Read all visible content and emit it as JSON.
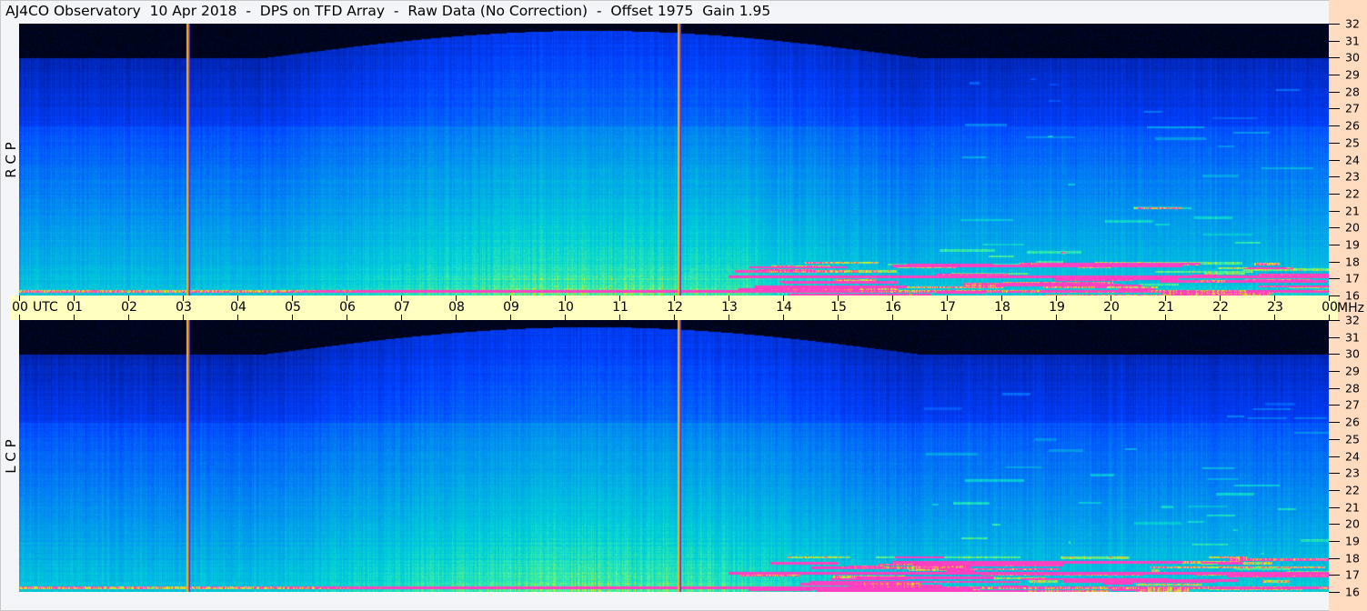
{
  "title": "AJ4CO Observatory  10 Apr 2018  -  DPS on TFD Array  -  Raw Data (No Correction)  -  Offset 1975  Gain 1.95",
  "chart_data": {
    "type": "heatmap",
    "panels": [
      {
        "name": "R C P",
        "label": "R C P"
      },
      {
        "name": "L C P",
        "label": "L C P"
      }
    ],
    "x_unit": "UTC",
    "x_ticks": [
      "00",
      "01",
      "02",
      "03",
      "04",
      "05",
      "06",
      "07",
      "08",
      "09",
      "10",
      "11",
      "12",
      "13",
      "14",
      "15",
      "16",
      "17",
      "18",
      "19",
      "20",
      "21",
      "22",
      "23",
      "00"
    ],
    "x_range_hours": [
      0,
      24
    ],
    "y_unit": "MHz",
    "y_ticks": [
      32,
      31,
      30,
      29,
      28,
      27,
      26,
      25,
      24,
      23,
      22,
      21,
      20,
      19,
      18,
      17,
      16
    ],
    "y_range": [
      16,
      32
    ],
    "interference_lines_utc_hours": [
      3.1,
      12.1
    ],
    "colormap": [
      "#000000",
      "#001890",
      "#0040ff",
      "#0090f0",
      "#00d0d8",
      "#40f0a0",
      "#f0f000",
      "#ff40c0"
    ],
    "grid": false
  },
  "colors": {
    "axis_band": "#ffffc0",
    "right_band": "#ffdcc0",
    "background": "#f4f5f8"
  }
}
